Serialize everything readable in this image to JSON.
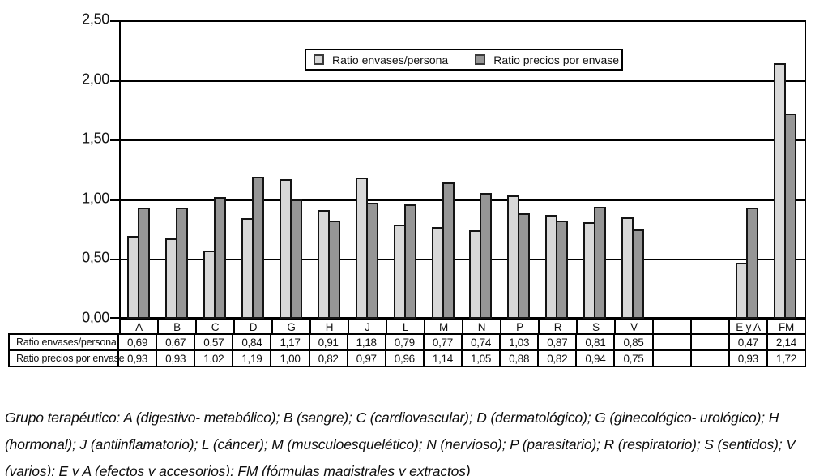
{
  "chart_data": {
    "type": "bar",
    "title": "",
    "xlabel": "",
    "ylabel": "",
    "categories": [
      "A",
      "B",
      "C",
      "D",
      "G",
      "H",
      "J",
      "L",
      "M",
      "N",
      "P",
      "R",
      "S",
      "V",
      "",
      "",
      "E y A",
      "FM"
    ],
    "series": [
      {
        "name": "Ratio envases/persona",
        "color": "#d8d8d8",
        "values": [
          0.69,
          0.67,
          0.57,
          0.84,
          1.17,
          0.91,
          1.18,
          0.79,
          0.77,
          0.74,
          1.03,
          0.87,
          0.81,
          0.85,
          null,
          null,
          0.47,
          2.14
        ]
      },
      {
        "name": "Ratio precios por envase",
        "color": "#969696",
        "values": [
          0.93,
          0.93,
          1.02,
          1.19,
          1.0,
          0.82,
          0.97,
          0.96,
          1.14,
          1.05,
          0.88,
          0.82,
          0.94,
          0.75,
          null,
          null,
          0.93,
          1.72
        ]
      }
    ],
    "ylim": [
      0,
      2.5
    ],
    "ytick_step": 0.5,
    "ytick_labels": [
      "0,00",
      "0,50",
      "1,00",
      "1,50",
      "2,00",
      "2,50"
    ],
    "grid": true,
    "legend_position": "inside-top-center",
    "bar_border_color": "#141414",
    "axis_color": "#000000"
  },
  "legend": {
    "items": [
      {
        "label": "Ratio envases/persona",
        "color": "#d8d8d8"
      },
      {
        "label": "Ratio precios por envase",
        "color": "#969696"
      }
    ]
  },
  "table": {
    "row_headers": [
      "Ratio envases/persona",
      "Ratio precios por envase"
    ],
    "columns": [
      "A",
      "B",
      "C",
      "D",
      "G",
      "H",
      "J",
      "L",
      "M",
      "N",
      "P",
      "R",
      "S",
      "V",
      "",
      "",
      "E y A",
      "FM"
    ],
    "rows": [
      [
        "0,69",
        "0,67",
        "0,57",
        "0,84",
        "1,17",
        "0,91",
        "1,18",
        "0,79",
        "0,77",
        "0,74",
        "1,03",
        "0,87",
        "0,81",
        "0,85",
        "",
        "",
        "0,47",
        "2,14"
      ],
      [
        "0,93",
        "0,93",
        "1,02",
        "1,19",
        "1,00",
        "0,82",
        "0,97",
        "0,96",
        "1,14",
        "1,05",
        "0,88",
        "0,82",
        "0,94",
        "0,75",
        "",
        "",
        "0,93",
        "1,72"
      ]
    ]
  },
  "caption": {
    "text": "Grupo terapéutico: A (digestivo- metabólico); B (sangre); C (cardiovascular); D (dermatológico); G (ginecológico- urológico); H (hormonal); J (antiinflamatorio); L (cáncer); M (musculoesquelético); N (nervioso); P (parasitario); R (respiratorio); S (sentidos); V (varios); E y A (efectos y accesorios); FM (fórmulas magistrales y extractos)"
  }
}
